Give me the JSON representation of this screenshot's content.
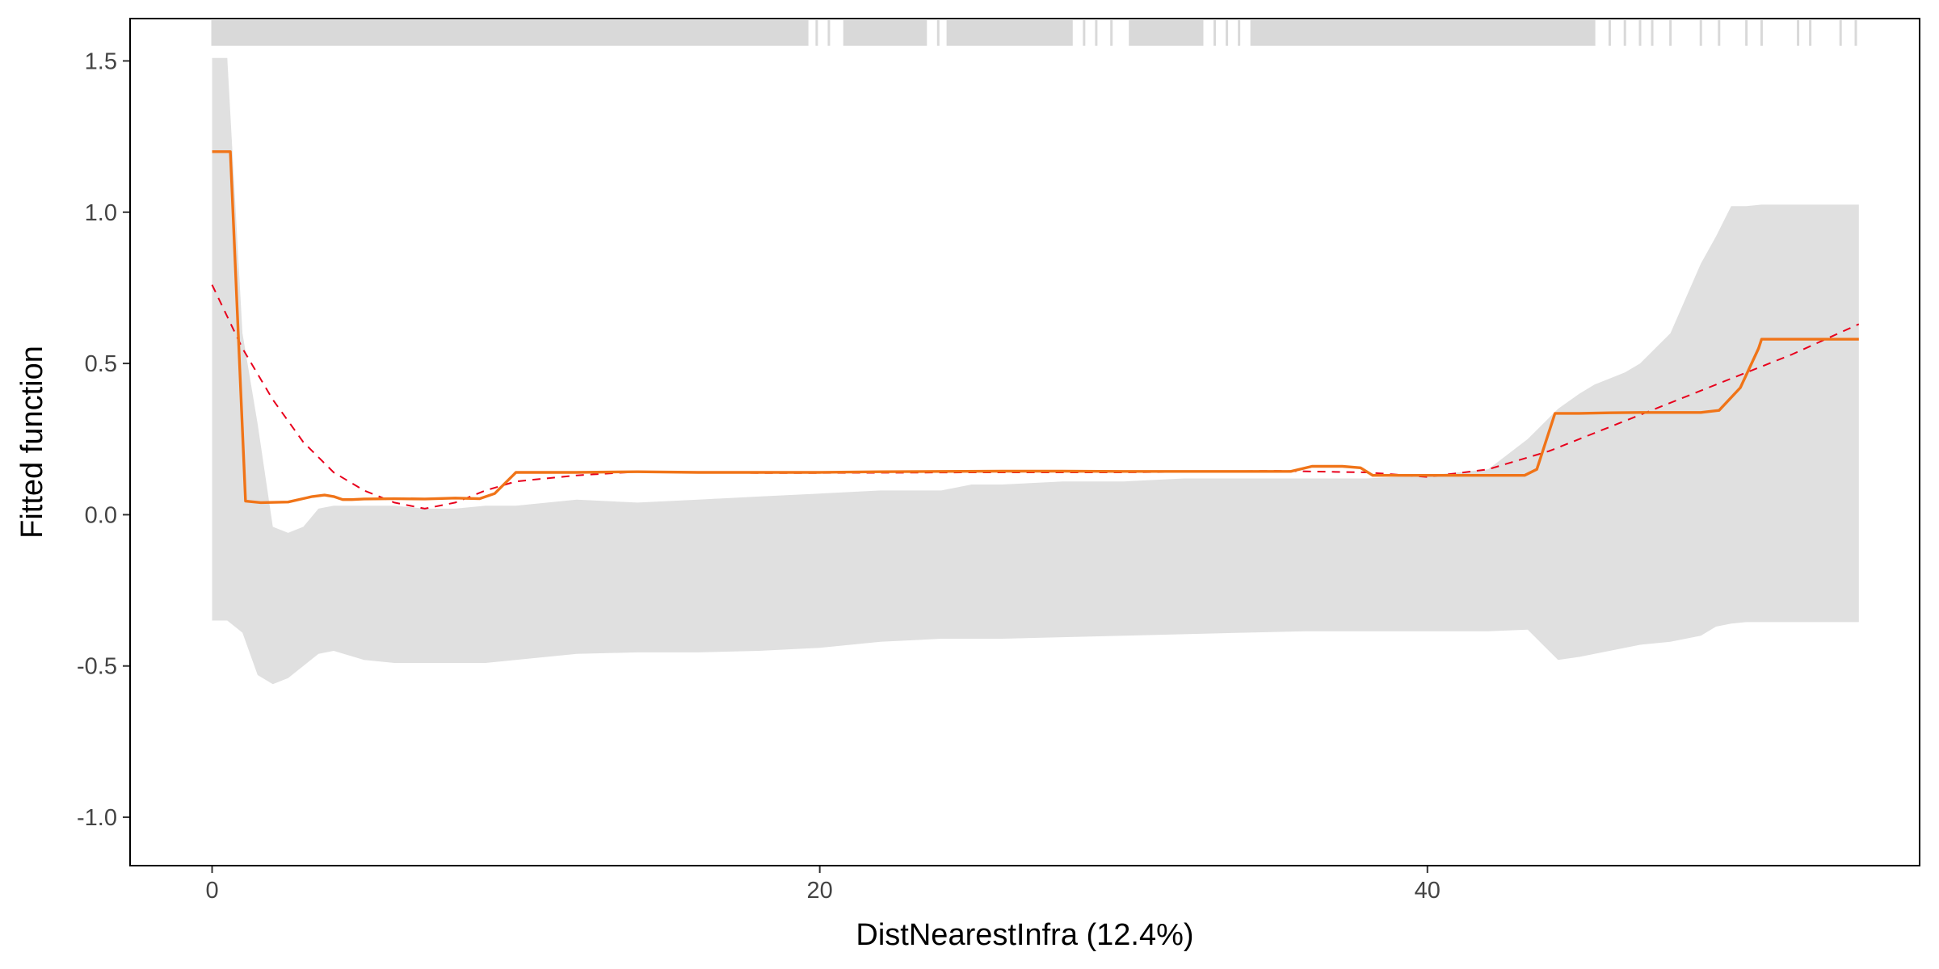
{
  "chart_data": {
    "type": "line",
    "title": "",
    "xlabel": "DistNearestInfra  (12.4%)",
    "ylabel": "Fitted function",
    "xlim": [
      -2.7,
      56.2
    ],
    "ylim": [
      -1.16,
      1.64
    ],
    "x_ticks": [
      0,
      20,
      40
    ],
    "x_tick_labels": [
      "0",
      "20",
      "40"
    ],
    "y_ticks": [
      1.5,
      1.0,
      0.5,
      0.0,
      -0.5,
      -1.0
    ],
    "y_tick_labels": [
      "1.5",
      "1.0",
      "0.5",
      "0.0",
      "-0.5",
      "-1.0"
    ],
    "grid": false,
    "legend": "none",
    "colors": {
      "fitted": "#f07418",
      "trend": "#e8001c",
      "band": "#e0e0e0",
      "rug": "#d9d9d9",
      "frame": "#000000"
    },
    "series": [
      {
        "role": "fitted",
        "style": "solid",
        "x": [
          0,
          0.6,
          1.1,
          1.6,
          2.5,
          3.3,
          3.7,
          4.0,
          4.3,
          4.6,
          5.0,
          6.0,
          7.0,
          8.0,
          8.8,
          9.3,
          10,
          12,
          14,
          16,
          18,
          20,
          22,
          24,
          26,
          28,
          30,
          32,
          34,
          35.5,
          36.2,
          37.2,
          37.8,
          38.2,
          39,
          40,
          41,
          42,
          43.2,
          43.6,
          44.2,
          45,
          46,
          47,
          48,
          49,
          49.6,
          50.3,
          50.9,
          51,
          52,
          53,
          54.2
        ],
        "y": [
          1.2,
          1.2,
          0.045,
          0.04,
          0.042,
          0.06,
          0.065,
          0.06,
          0.05,
          0.05,
          0.052,
          0.053,
          0.052,
          0.055,
          0.053,
          0.07,
          0.14,
          0.14,
          0.142,
          0.14,
          0.14,
          0.14,
          0.142,
          0.143,
          0.144,
          0.144,
          0.143,
          0.143,
          0.143,
          0.143,
          0.16,
          0.16,
          0.155,
          0.13,
          0.13,
          0.13,
          0.13,
          0.13,
          0.13,
          0.15,
          0.335,
          0.335,
          0.337,
          0.338,
          0.338,
          0.338,
          0.345,
          0.42,
          0.55,
          0.58,
          0.58,
          0.58,
          0.58
        ]
      },
      {
        "role": "trend",
        "style": "dashed",
        "x": [
          0,
          1,
          2,
          3,
          4,
          5,
          6,
          7,
          8,
          9,
          10,
          12,
          14,
          16,
          18,
          20,
          25,
          30,
          35,
          38,
          40,
          42,
          44,
          46,
          48,
          50,
          52,
          54.2
        ],
        "y": [
          0.76,
          0.55,
          0.38,
          0.24,
          0.14,
          0.08,
          0.04,
          0.02,
          0.04,
          0.08,
          0.11,
          0.13,
          0.142,
          0.14,
          0.138,
          0.138,
          0.14,
          0.14,
          0.145,
          0.14,
          0.125,
          0.15,
          0.21,
          0.29,
          0.37,
          0.45,
          0.53,
          0.63
        ]
      }
    ],
    "band": {
      "x": [
        0,
        0.5,
        1,
        1.5,
        2,
        2.5,
        3,
        3.5,
        4,
        5,
        6,
        7,
        8,
        9,
        10,
        12,
        14,
        16,
        18,
        20,
        22,
        24,
        25,
        26,
        28,
        30,
        32,
        34,
        36,
        38,
        40,
        42,
        43.3,
        44.3,
        45,
        45.5,
        46,
        46.5,
        47,
        48,
        49,
        49.5,
        50,
        50.5,
        51,
        52,
        53,
        54.2
      ],
      "lower": [
        -0.35,
        -0.35,
        -0.39,
        -0.53,
        -0.56,
        -0.54,
        -0.5,
        -0.46,
        -0.45,
        -0.48,
        -0.49,
        -0.49,
        -0.49,
        -0.49,
        -0.48,
        -0.46,
        -0.455,
        -0.455,
        -0.45,
        -0.44,
        -0.42,
        -0.41,
        -0.41,
        -0.41,
        -0.405,
        -0.4,
        -0.395,
        -0.39,
        -0.385,
        -0.385,
        -0.385,
        -0.385,
        -0.38,
        -0.48,
        -0.47,
        -0.46,
        -0.45,
        -0.44,
        -0.43,
        -0.42,
        -0.4,
        -0.37,
        -0.36,
        -0.355,
        -0.355,
        -0.355,
        -0.355,
        -0.355
      ],
      "upper": [
        1.51,
        1.51,
        0.6,
        0.3,
        -0.04,
        -0.06,
        -0.04,
        0.02,
        0.03,
        0.03,
        0.03,
        0.02,
        0.02,
        0.03,
        0.03,
        0.05,
        0.04,
        0.05,
        0.06,
        0.07,
        0.08,
        0.08,
        0.1,
        0.1,
        0.11,
        0.11,
        0.12,
        0.12,
        0.12,
        0.12,
        0.13,
        0.15,
        0.25,
        0.35,
        0.4,
        0.43,
        0.45,
        0.47,
        0.5,
        0.6,
        0.83,
        0.92,
        1.02,
        1.02,
        1.025,
        1.025,
        1.025,
        1.025
      ]
    },
    "rug": {
      "dense_ranges": [
        [
          0,
          19.6
        ],
        [
          20.8,
          23.5
        ],
        [
          24.2,
          28.3
        ],
        [
          30.2,
          32.6
        ],
        [
          34.2,
          45.5
        ]
      ],
      "sparse_x": [
        19.9,
        20.3,
        23.9,
        28.7,
        29.1,
        29.6,
        33.0,
        33.4,
        33.8,
        46.0,
        46.5,
        47.0,
        47.4,
        48.0,
        49.0,
        49.6,
        50.5,
        51.0,
        52.2,
        52.6,
        53.6,
        54.1
      ]
    }
  }
}
